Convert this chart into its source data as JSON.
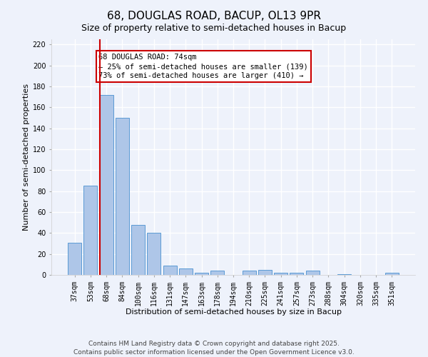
{
  "title": "68, DOUGLAS ROAD, BACUP, OL13 9PR",
  "subtitle": "Size of property relative to semi-detached houses in Bacup",
  "xlabel": "Distribution of semi-detached houses by size in Bacup",
  "ylabel": "Number of semi-detached properties",
  "categories": [
    "37sqm",
    "53sqm",
    "68sqm",
    "84sqm",
    "100sqm",
    "116sqm",
    "131sqm",
    "147sqm",
    "163sqm",
    "178sqm",
    "194sqm",
    "210sqm",
    "225sqm",
    "241sqm",
    "257sqm",
    "273sqm",
    "288sqm",
    "304sqm",
    "320sqm",
    "335sqm",
    "351sqm"
  ],
  "values": [
    31,
    85,
    172,
    150,
    48,
    40,
    9,
    6,
    2,
    4,
    0,
    4,
    5,
    2,
    2,
    4,
    0,
    1,
    0,
    0,
    2
  ],
  "bar_color": "#aec6e8",
  "bar_edge_color": "#5b9bd5",
  "highlight_index": 2,
  "highlight_line_color": "#cc0000",
  "ylim": [
    0,
    225
  ],
  "yticks": [
    0,
    20,
    40,
    60,
    80,
    100,
    120,
    140,
    160,
    180,
    200,
    220
  ],
  "box_text_line1": "68 DOUGLAS ROAD: 74sqm",
  "box_text_line2": "← 25% of semi-detached houses are smaller (139)",
  "box_text_line3": "73% of semi-detached houses are larger (410) →",
  "box_color": "#ffffff",
  "box_edge_color": "#cc0000",
  "background_color": "#eef2fb",
  "grid_color": "#ffffff",
  "footer1": "Contains HM Land Registry data © Crown copyright and database right 2025.",
  "footer2": "Contains public sector information licensed under the Open Government Licence v3.0.",
  "title_fontsize": 11,
  "subtitle_fontsize": 9,
  "axis_label_fontsize": 8,
  "tick_fontsize": 7,
  "annotation_fontsize": 7.5,
  "footer_fontsize": 6.5
}
